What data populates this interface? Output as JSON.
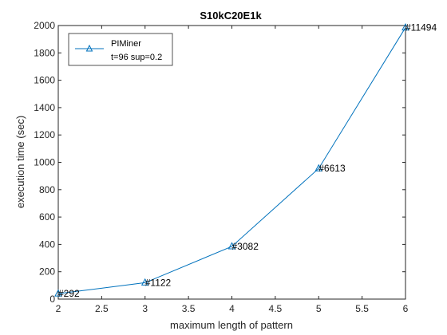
{
  "chart_data": {
    "type": "line",
    "title": "S10kC20E1k",
    "xlabel": "maximum length of pattern",
    "ylabel": "execution time (sec)",
    "xlim": [
      2,
      6
    ],
    "ylim": [
      0,
      2000
    ],
    "x_ticks": [
      "2",
      "2.5",
      "3",
      "3.5",
      "4",
      "4.5",
      "5",
      "5.5",
      "6"
    ],
    "y_ticks": [
      "0",
      "200",
      "400",
      "600",
      "800",
      "1000",
      "1200",
      "1400",
      "1600",
      "1800",
      "2000"
    ],
    "grid": false,
    "legend_position": "top-left",
    "series": [
      {
        "name": "PIMiner",
        "name_line2": "t=96 sup=0.2",
        "color": "#0072BD",
        "marker": "triangle",
        "x": [
          2,
          3,
          4,
          5,
          6
        ],
        "y": [
          40,
          120,
          385,
          955,
          1985
        ],
        "labels": [
          "#292",
          "#1122",
          "#3082",
          "#6613",
          "#11494"
        ]
      }
    ]
  }
}
